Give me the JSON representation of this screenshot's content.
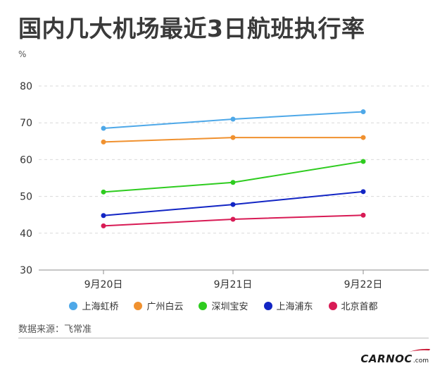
{
  "title": "国内几大机场最近3日航班执行率",
  "unit": "%",
  "source": "数据来源：飞常准",
  "brand": {
    "main": "CARNOC",
    "sub": ".com",
    "accent_color": "#c8102e"
  },
  "chart_data": {
    "type": "line",
    "title": "国内几大机场最近3日航班执行率",
    "ylabel": "%",
    "xlabel": "",
    "categories": [
      "9月20日",
      "9月21日",
      "9月22日"
    ],
    "ylim": [
      30,
      80
    ],
    "yticks": [
      30,
      40,
      50,
      60,
      70,
      80
    ],
    "grid": true,
    "legend_position": "bottom",
    "series": [
      {
        "name": "上海虹桥",
        "color": "#4ea8e8",
        "values": [
          68.5,
          71.0,
          73.0
        ]
      },
      {
        "name": "广州白云",
        "color": "#f0912f",
        "values": [
          64.8,
          66.0,
          66.0
        ]
      },
      {
        "name": "深圳宝安",
        "color": "#2ecc1f",
        "values": [
          51.2,
          53.8,
          59.5
        ]
      },
      {
        "name": "上海浦东",
        "color": "#1225c4",
        "values": [
          44.8,
          47.8,
          51.3
        ]
      },
      {
        "name": "北京首都",
        "color": "#d81b55",
        "values": [
          42.0,
          43.8,
          44.9
        ]
      }
    ]
  }
}
